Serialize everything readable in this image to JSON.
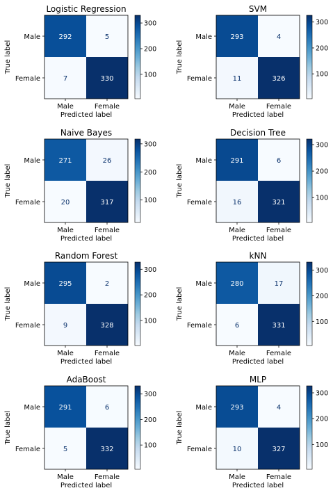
{
  "chart_data": [
    {
      "type": "heatmap",
      "title": "Logistic Regression",
      "xlabel": "Predicted label",
      "ylabel": "True label",
      "x_categories": [
        "Male",
        "Female"
      ],
      "y_categories": [
        "Male",
        "Female"
      ],
      "values": [
        [
          292,
          5
        ],
        [
          7,
          330
        ]
      ],
      "colorbar_ticks": [
        100,
        200,
        300
      ],
      "colorbar_range": [
        5,
        330
      ],
      "colormap": "Blues"
    },
    {
      "type": "heatmap",
      "title": "SVM",
      "xlabel": "Predicted label",
      "ylabel": "True label",
      "x_categories": [
        "Male",
        "Female"
      ],
      "y_categories": [
        "Male",
        "Female"
      ],
      "values": [
        [
          293,
          4
        ],
        [
          11,
          326
        ]
      ],
      "colorbar_ticks": [
        100,
        200,
        300
      ],
      "colorbar_range": [
        4,
        326
      ],
      "colormap": "Blues"
    },
    {
      "type": "heatmap",
      "title": "Naive Bayes",
      "xlabel": "Predicted label",
      "ylabel": "True label",
      "x_categories": [
        "Male",
        "Female"
      ],
      "y_categories": [
        "Male",
        "Female"
      ],
      "values": [
        [
          271,
          26
        ],
        [
          20,
          317
        ]
      ],
      "colorbar_ticks": [
        100,
        200,
        300
      ],
      "colorbar_range": [
        20,
        317
      ],
      "colormap": "Blues"
    },
    {
      "type": "heatmap",
      "title": "Decision Tree",
      "xlabel": "Predicted label",
      "ylabel": "True label",
      "x_categories": [
        "Male",
        "Female"
      ],
      "y_categories": [
        "Male",
        "Female"
      ],
      "values": [
        [
          291,
          6
        ],
        [
          16,
          321
        ]
      ],
      "colorbar_ticks": [
        100,
        200,
        300
      ],
      "colorbar_range": [
        6,
        321
      ],
      "colormap": "Blues"
    },
    {
      "type": "heatmap",
      "title": "Random Forest",
      "xlabel": "Predicted label",
      "ylabel": "True label",
      "x_categories": [
        "Male",
        "Female"
      ],
      "y_categories": [
        "Male",
        "Female"
      ],
      "values": [
        [
          295,
          2
        ],
        [
          9,
          328
        ]
      ],
      "colorbar_ticks": [
        100,
        200,
        300
      ],
      "colorbar_range": [
        2,
        328
      ],
      "colormap": "Blues"
    },
    {
      "type": "heatmap",
      "title": "kNN",
      "xlabel": "Predicted label",
      "ylabel": "True label",
      "x_categories": [
        "Male",
        "Female"
      ],
      "y_categories": [
        "Male",
        "Female"
      ],
      "values": [
        [
          280,
          17
        ],
        [
          6,
          331
        ]
      ],
      "colorbar_ticks": [
        100,
        200,
        300
      ],
      "colorbar_range": [
        6,
        331
      ],
      "colormap": "Blues"
    },
    {
      "type": "heatmap",
      "title": "AdaBoost",
      "xlabel": "Predicted label",
      "ylabel": "True label",
      "x_categories": [
        "Male",
        "Female"
      ],
      "y_categories": [
        "Male",
        "Female"
      ],
      "values": [
        [
          291,
          6
        ],
        [
          5,
          332
        ]
      ],
      "colorbar_ticks": [
        100,
        200,
        300
      ],
      "colorbar_range": [
        5,
        332
      ],
      "colormap": "Blues"
    },
    {
      "type": "heatmap",
      "title": "MLP",
      "xlabel": "Predicted label",
      "ylabel": "True label",
      "x_categories": [
        "Male",
        "Female"
      ],
      "y_categories": [
        "Male",
        "Female"
      ],
      "values": [
        [
          293,
          4
        ],
        [
          10,
          327
        ]
      ],
      "colorbar_ticks": [
        100,
        200,
        300
      ],
      "colorbar_range": [
        4,
        327
      ],
      "colormap": "Blues"
    }
  ]
}
